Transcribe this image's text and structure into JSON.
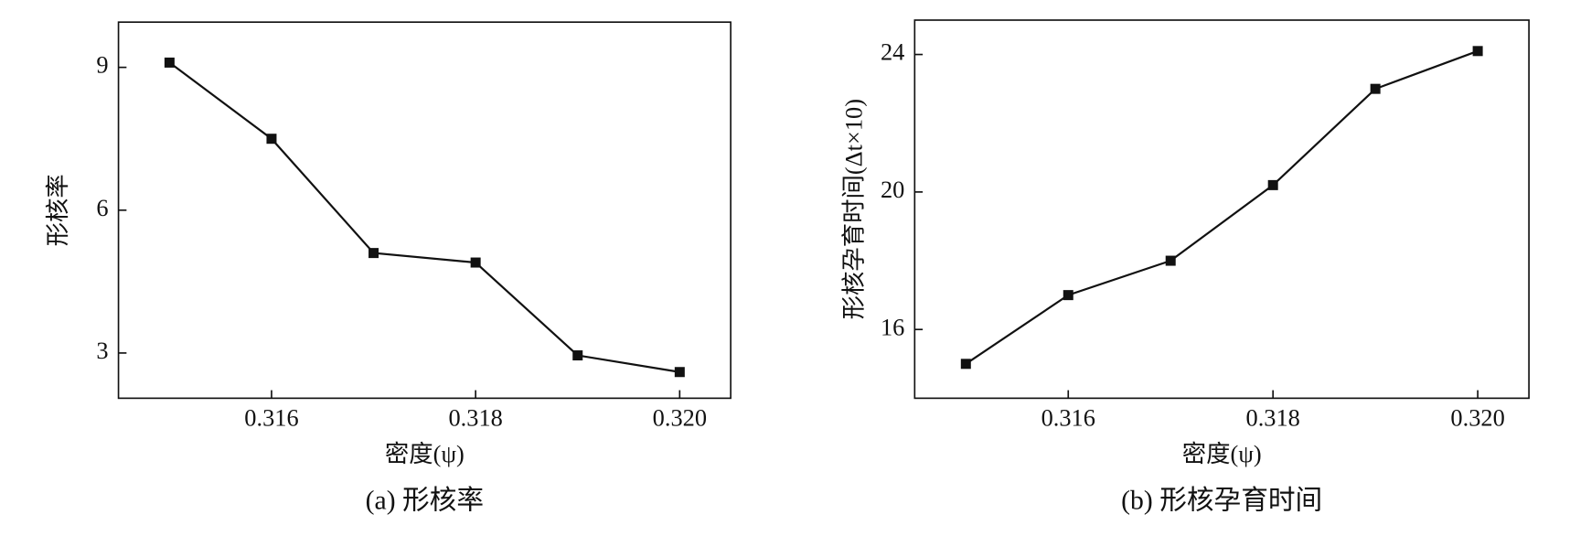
{
  "chart_data": [
    {
      "type": "line",
      "caption": "(a) 形核率",
      "xlabel": "密度(ψ)",
      "ylabel": "形核率",
      "x": [
        0.315,
        0.316,
        0.317,
        0.318,
        0.319,
        0.32
      ],
      "series": [
        {
          "color": "#111111",
          "values": [
            9.1,
            7.5,
            5.1,
            4.9,
            2.95,
            2.6
          ]
        }
      ],
      "xlim": [
        0.3145,
        0.3205
      ],
      "xticks": [
        0.316,
        0.318,
        {
          "value": 0.32,
          "label": "0.320"
        }
      ],
      "ylim": [
        2.05,
        9.95
      ],
      "yticks": [
        3,
        6,
        9
      ]
    },
    {
      "type": "line",
      "caption": "(b) 形核孕育时间",
      "xlabel": "密度(ψ)",
      "ylabel": "形核孕育时间(Δt×10)",
      "x": [
        0.315,
        0.316,
        0.317,
        0.318,
        0.319,
        0.32
      ],
      "series": [
        {
          "color": "#111111",
          "values": [
            15.0,
            17.0,
            18.0,
            20.2,
            23.0,
            24.1
          ]
        }
      ],
      "xlim": [
        0.3145,
        0.3205
      ],
      "xticks": [
        0.316,
        0.318,
        {
          "value": 0.32,
          "label": "0.320"
        }
      ],
      "ylim": [
        14.0,
        25.0
      ],
      "yticks": [
        16,
        20,
        24
      ]
    }
  ]
}
